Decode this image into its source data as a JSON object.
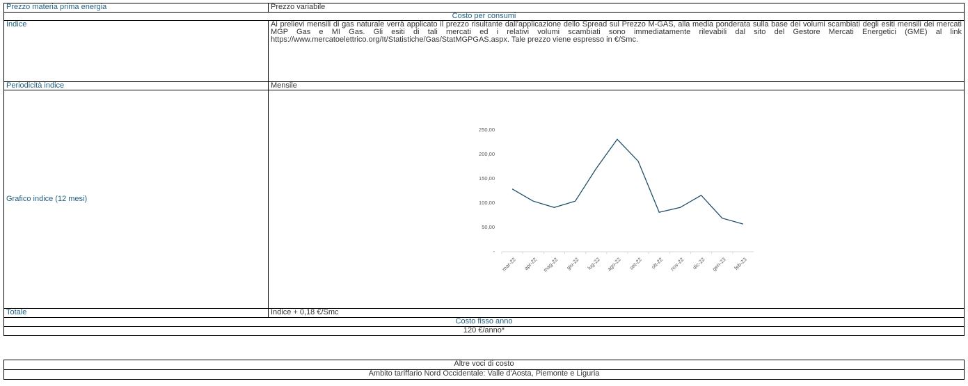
{
  "table": {
    "rows": [
      [
        "Prezzo materia prima energia",
        "Prezzo variabile"
      ],
      [
        "Costo per consumi"
      ],
      [
        "Indice",
        "Ai prelievi mensili di gas naturale verrà applicato il prezzo risultante dall'applicazione dello Spread sul Prezzo M-GAS, alla media ponderata sulla base dei volumi scambiati degli esiti mensili dei mercati MGP Gas e MI Gas. Gli esiti di tali mercati ed i relativi volumi scambiati sono immediatamente rilevabili dal sito del Gestore Mercati Energetici (GME) al link https://www.mercatoelettrico.org/It/Statistiche/Gas/StatMGPGAS.aspx. Tale prezzo viene espresso in €/Smc."
      ],
      [
        "Periodicità indice",
        "Mensile"
      ],
      [
        "Grafico indice (12 mesi)"
      ],
      [
        "Totale",
        "Indice + 0,18 €/Smc"
      ],
      [
        "Costo fisso anno"
      ],
      [
        "120 €/anno*"
      ]
    ]
  },
  "chart_data": {
    "type": "line",
    "categories": [
      "mar-22",
      "apr-22",
      "mag-22",
      "giu-22",
      "lug-22",
      "ago-22",
      "set-22",
      "ott-22",
      "nov-22",
      "dic-22",
      "gen-23",
      "feb-23"
    ],
    "series": [
      {
        "color": "#1f4e6b",
        "values": [
          129,
          104,
          91,
          104,
          171,
          231,
          186,
          81,
          91,
          116,
          69,
          57
        ]
      }
    ],
    "ylim": [
      0,
      250
    ],
    "yticks": [
      {
        "value": 0,
        "label": "-"
      },
      {
        "value": 50,
        "label": "50,00"
      },
      {
        "value": 100,
        "label": "100,00"
      },
      {
        "value": 150,
        "label": "150,00"
      },
      {
        "value": 200,
        "label": "200,00"
      },
      {
        "value": 250,
        "label": "250,00"
      }
    ],
    "grid": false
  },
  "table2": {
    "rows": [
      [
        "Altre voci di costo"
      ],
      [
        "Ambito tariffario Nord Occidentale: Valle d'Aosta, Piemonte e Liguria"
      ]
    ]
  }
}
